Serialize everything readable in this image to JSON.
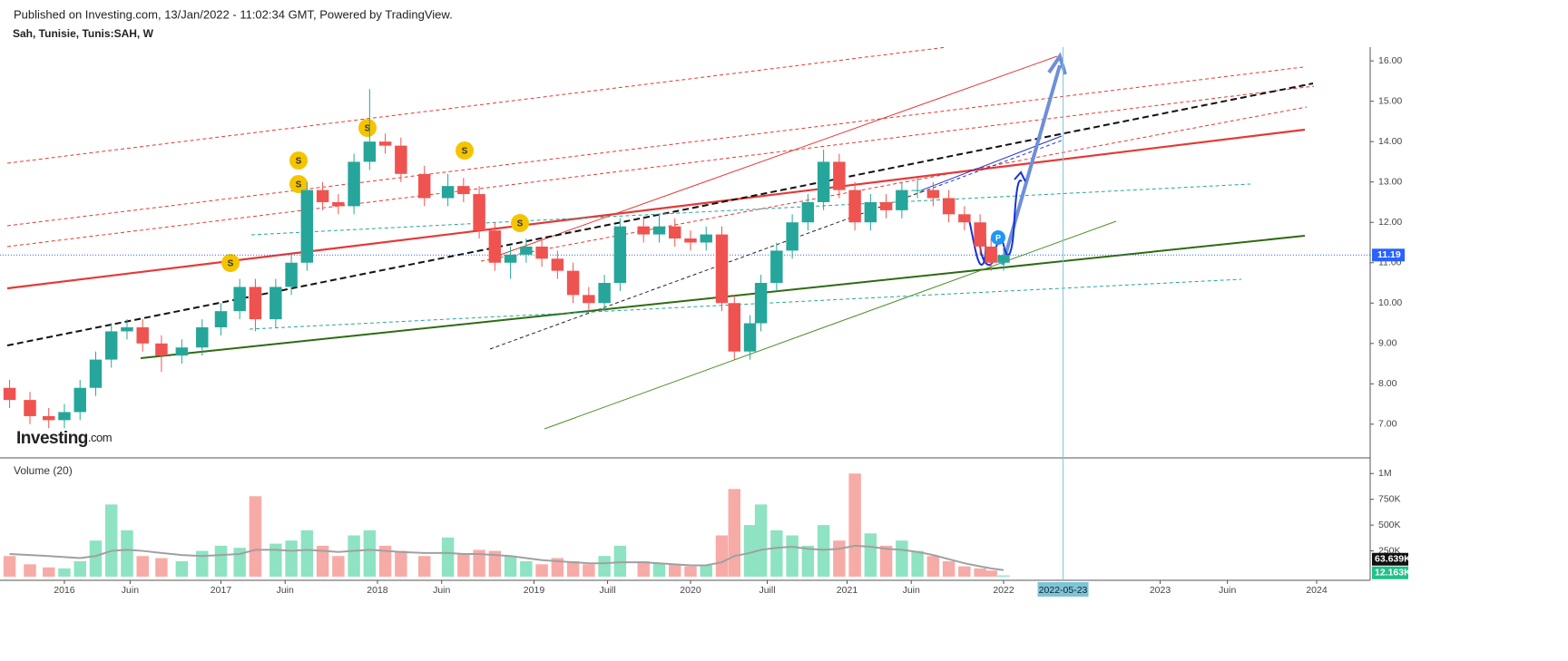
{
  "header": "Published on Investing.com, 13/Jan/2022 - 11:02:34 GMT, Powered by TradingView.",
  "logo": {
    "name": "Investing",
    "suffix": ".com"
  },
  "chart_data": {
    "type": "candlestick",
    "title": "Sah, Tunisie, Tunis:SAH, W",
    "x": [
      2015.65,
      2015.78,
      2015.9,
      2016.0,
      2016.1,
      2016.2,
      2016.3,
      2016.4,
      2016.5,
      2016.62,
      2016.75,
      2016.88,
      2017.0,
      2017.12,
      2017.22,
      2017.35,
      2017.45,
      2017.55,
      2017.65,
      2017.75,
      2017.85,
      2017.95,
      2018.05,
      2018.15,
      2018.3,
      2018.45,
      2018.55,
      2018.65,
      2018.75,
      2018.85,
      2018.95,
      2019.05,
      2019.15,
      2019.25,
      2019.35,
      2019.45,
      2019.55,
      2019.7,
      2019.8,
      2019.9,
      2020.0,
      2020.1,
      2020.2,
      2020.28,
      2020.38,
      2020.45,
      2020.55,
      2020.65,
      2020.75,
      2020.85,
      2020.95,
      2021.05,
      2021.15,
      2021.25,
      2021.35,
      2021.45,
      2021.55,
      2021.65,
      2021.75,
      2021.85,
      2021.92,
      2022.0
    ],
    "open": [
      7.9,
      7.6,
      7.2,
      7.1,
      7.3,
      7.9,
      8.6,
      9.3,
      9.4,
      9.0,
      8.7,
      8.9,
      9.4,
      9.8,
      10.4,
      9.6,
      10.4,
      11.0,
      12.8,
      12.5,
      12.4,
      13.5,
      14.0,
      13.9,
      13.2,
      12.6,
      12.9,
      12.7,
      11.8,
      11.0,
      11.2,
      11.4,
      11.1,
      10.8,
      10.2,
      10.0,
      10.5,
      11.9,
      11.7,
      11.9,
      11.6,
      11.5,
      11.7,
      10.0,
      8.8,
      9.5,
      10.5,
      11.3,
      12.0,
      12.5,
      13.5,
      12.8,
      12.0,
      12.5,
      12.3,
      12.8,
      12.8,
      12.6,
      12.2,
      12.0,
      11.4,
      11.0
    ],
    "high": [
      8.1,
      7.8,
      7.4,
      7.5,
      8.1,
      8.8,
      9.5,
      9.6,
      9.6,
      9.2,
      9.1,
      9.6,
      10.0,
      10.6,
      10.6,
      10.6,
      11.2,
      13.0,
      13.0,
      12.7,
      13.7,
      15.3,
      14.2,
      14.1,
      13.4,
      13.2,
      13.1,
      12.9,
      12.0,
      11.4,
      11.6,
      11.6,
      11.3,
      11.0,
      10.4,
      10.7,
      12.1,
      12.1,
      12.2,
      12.1,
      11.8,
      11.9,
      11.9,
      10.2,
      9.7,
      10.7,
      11.5,
      12.2,
      12.7,
      13.8,
      13.7,
      13.0,
      12.7,
      12.7,
      13.0,
      13.1,
      13.0,
      12.8,
      12.4,
      12.2,
      11.6,
      11.4
    ],
    "low": [
      7.4,
      7.0,
      6.9,
      6.9,
      7.1,
      7.7,
      8.4,
      9.1,
      8.8,
      8.3,
      8.5,
      8.7,
      9.2,
      9.6,
      9.3,
      9.4,
      10.2,
      10.8,
      12.3,
      12.2,
      12.2,
      13.3,
      13.7,
      13.0,
      12.4,
      12.4,
      12.5,
      11.6,
      10.8,
      10.6,
      11.0,
      10.9,
      10.6,
      10.0,
      9.8,
      9.8,
      10.3,
      11.5,
      11.5,
      11.4,
      11.3,
      11.3,
      9.8,
      8.6,
      8.6,
      9.3,
      10.3,
      11.1,
      11.8,
      12.3,
      12.6,
      11.8,
      11.8,
      12.1,
      12.1,
      12.6,
      12.4,
      12.0,
      11.8,
      11.2,
      10.8,
      10.8
    ],
    "close": [
      7.6,
      7.2,
      7.1,
      7.3,
      7.9,
      8.6,
      9.3,
      9.4,
      9.0,
      8.7,
      8.9,
      9.4,
      9.8,
      10.4,
      9.6,
      10.4,
      11.0,
      12.8,
      12.5,
      12.4,
      13.5,
      14.0,
      13.9,
      13.2,
      12.6,
      12.9,
      12.7,
      11.8,
      11.0,
      11.2,
      11.4,
      11.1,
      10.8,
      10.2,
      10.0,
      10.5,
      11.9,
      11.7,
      11.9,
      11.6,
      11.5,
      11.7,
      10.0,
      8.8,
      9.5,
      10.5,
      11.3,
      12.0,
      12.5,
      13.5,
      12.8,
      12.0,
      12.5,
      12.3,
      12.8,
      12.8,
      12.6,
      12.2,
      12.0,
      11.4,
      11.0,
      11.19
    ],
    "up_color": "#26a69a",
    "down_color": "#ef5350",
    "xlim": [
      2015.635,
      2024.342
    ],
    "xticks": [
      {
        "value": 2016,
        "label": "2016"
      },
      {
        "value": 2016.42,
        "label": "Juin"
      },
      {
        "value": 2017,
        "label": "2017"
      },
      {
        "value": 2017.41,
        "label": "Juin"
      },
      {
        "value": 2018,
        "label": "2018"
      },
      {
        "value": 2018.41,
        "label": "Juin"
      },
      {
        "value": 2019,
        "label": "2019"
      },
      {
        "value": 2019.47,
        "label": "Juill"
      },
      {
        "value": 2020,
        "label": "2020"
      },
      {
        "value": 2020.49,
        "label": "Juill"
      },
      {
        "value": 2021,
        "label": "2021"
      },
      {
        "value": 2021.41,
        "label": "Juin"
      },
      {
        "value": 2022,
        "label": "2022"
      },
      {
        "value": 2023,
        "label": "2023"
      },
      {
        "value": 2023.43,
        "label": "Juin"
      },
      {
        "value": 2024,
        "label": "2024"
      }
    ],
    "crosshair": {
      "value": 2022.38,
      "label": "2022-05-23"
    },
    "ylim": [
      6.21,
      16.34
    ],
    "yticks": [
      {
        "value": 7,
        "label": "7.00"
      },
      {
        "value": 8,
        "label": "8.00"
      },
      {
        "value": 9,
        "label": "9.00"
      },
      {
        "value": 10,
        "label": "10.00"
      },
      {
        "value": 11,
        "label": "11.00"
      },
      {
        "value": 12,
        "label": "12.00"
      },
      {
        "value": 13,
        "label": "13.00"
      },
      {
        "value": 14,
        "label": "14.00"
      },
      {
        "value": 15,
        "label": "15.00"
      },
      {
        "value": 16,
        "label": "16.00"
      }
    ],
    "last_price": 11.19,
    "last_price_color": "#2962ff",
    "dividend_label": "S",
    "marker_label": "P",
    "volume": {
      "title": "Volume (20)",
      "values": [
        200000,
        120000,
        90000,
        80000,
        150000,
        350000,
        700000,
        450000,
        200000,
        180000,
        150000,
        250000,
        300000,
        280000,
        780000,
        320000,
        350000,
        450000,
        300000,
        200000,
        400000,
        450000,
        300000,
        250000,
        200000,
        380000,
        220000,
        260000,
        250000,
        200000,
        150000,
        120000,
        180000,
        150000,
        120000,
        200000,
        300000,
        150000,
        130000,
        120000,
        100000,
        110000,
        400000,
        850000,
        500000,
        700000,
        450000,
        400000,
        300000,
        500000,
        350000,
        1000000,
        420000,
        300000,
        350000,
        250000,
        200000,
        150000,
        100000,
        80000,
        60000,
        12163
      ],
      "up_color": "#8ee3c2",
      "down_color": "#f7aba7",
      "ylim": [
        0,
        1090000
      ],
      "yticks": [
        {
          "value": 250000,
          "label": "250K"
        },
        {
          "value": 500000,
          "label": "500K"
        },
        {
          "value": 750000,
          "label": "750K"
        },
        {
          "value": 1000000,
          "label": "1M"
        }
      ],
      "ma": {
        "color": "#a0a0a0",
        "values": [
          220000,
          210000,
          200000,
          190000,
          180000,
          200000,
          250000,
          260000,
          250000,
          230000,
          210000,
          200000,
          210000,
          220000,
          260000,
          260000,
          250000,
          260000,
          250000,
          240000,
          250000,
          260000,
          250000,
          240000,
          230000,
          230000,
          220000,
          220000,
          210000,
          200000,
          180000,
          160000,
          150000,
          140000,
          130000,
          130000,
          140000,
          140000,
          130000,
          120000,
          110000,
          110000,
          140000,
          200000,
          230000,
          260000,
          280000,
          290000,
          270000,
          260000,
          270000,
          300000,
          290000,
          270000,
          260000,
          240000,
          210000,
          170000,
          130000,
          100000,
          80000,
          63639
        ]
      },
      "last_ma": {
        "value": 63639,
        "label": "63.639K"
      },
      "last_value": {
        "value": 12163,
        "label": "12.163K"
      }
    }
  }
}
